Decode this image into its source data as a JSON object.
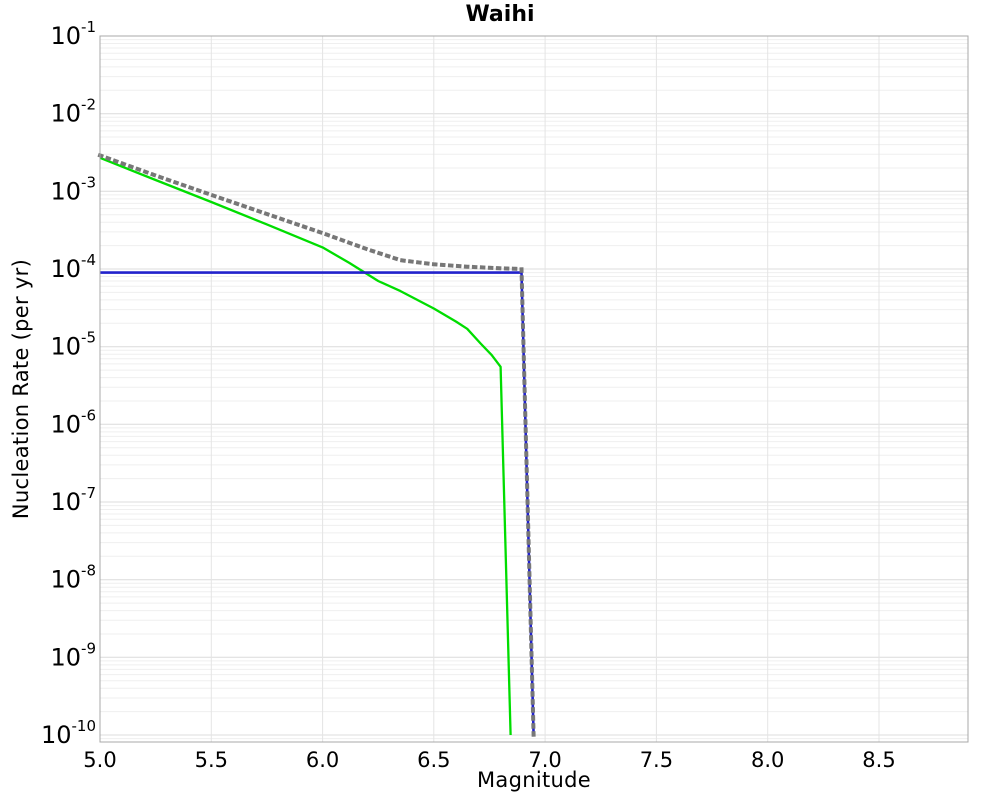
{
  "chart_data": {
    "type": "line",
    "title": "Waihi",
    "xlabel": "Magnitude",
    "ylabel": "Nucleation Rate (per yr)",
    "xlim": [
      5.0,
      8.9
    ],
    "ylim": [
      1e-10,
      0.1
    ],
    "yscale": "log",
    "xticks": [
      5.0,
      5.5,
      6.0,
      6.5,
      7.0,
      7.5,
      8.0,
      8.5
    ],
    "ytick_exponents": [
      -1,
      -2,
      -3,
      -4,
      -5,
      -6,
      -7,
      -8,
      -9,
      -10
    ],
    "grid": {
      "major": true,
      "minor": true,
      "vertical": true
    },
    "legend": "none",
    "colors": {
      "green_curve": "#00dd00",
      "blue_curve": "#2222cc",
      "grey_dotted_curve": "#777777",
      "major_grid": "#dcdcdc",
      "minor_grid": "#efefef",
      "vertical_grid": "#e4e4e4",
      "border": "#a8a8a8"
    },
    "series": [
      {
        "name": "green-solid-curve",
        "color": "#00dd00",
        "style": "solid",
        "width": 2.3,
        "points": [
          [
            5.0,
            0.0027
          ],
          [
            5.25,
            0.0014
          ],
          [
            5.5,
            0.00073
          ],
          [
            5.75,
            0.000375
          ],
          [
            6.0,
            0.00019
          ],
          [
            6.12,
            0.00012
          ],
          [
            6.25,
            7e-05
          ],
          [
            6.35,
            5.2e-05
          ],
          [
            6.5,
            3.1e-05
          ],
          [
            6.6,
            2.1e-05
          ],
          [
            6.65,
            1.7e-05
          ],
          [
            6.71,
            1.1e-05
          ],
          [
            6.76,
            7.8e-06
          ],
          [
            6.8,
            5.5e-06
          ],
          [
            6.845,
            1e-10
          ]
        ]
      },
      {
        "name": "blue-solid-curve",
        "color": "#2222cc",
        "style": "solid",
        "width": 2.6,
        "points": [
          [
            5.0,
            9e-05
          ],
          [
            6.894,
            9e-05
          ],
          [
            6.948,
            1e-10
          ]
        ]
      },
      {
        "name": "grey-dotted-curve",
        "color": "#777777",
        "style": "dotted",
        "width": 4,
        "points": [
          [
            5.0,
            0.0029
          ],
          [
            5.25,
            0.0016
          ],
          [
            5.5,
            0.0009
          ],
          [
            5.75,
            0.00051
          ],
          [
            6.0,
            0.00029
          ],
          [
            6.2,
            0.00018
          ],
          [
            6.35,
            0.00013
          ],
          [
            6.5,
            0.000115
          ],
          [
            6.65,
            0.000107
          ],
          [
            6.8,
            0.000102
          ],
          [
            6.894,
            0.0001
          ],
          [
            6.948,
            1e-10
          ]
        ]
      }
    ]
  }
}
